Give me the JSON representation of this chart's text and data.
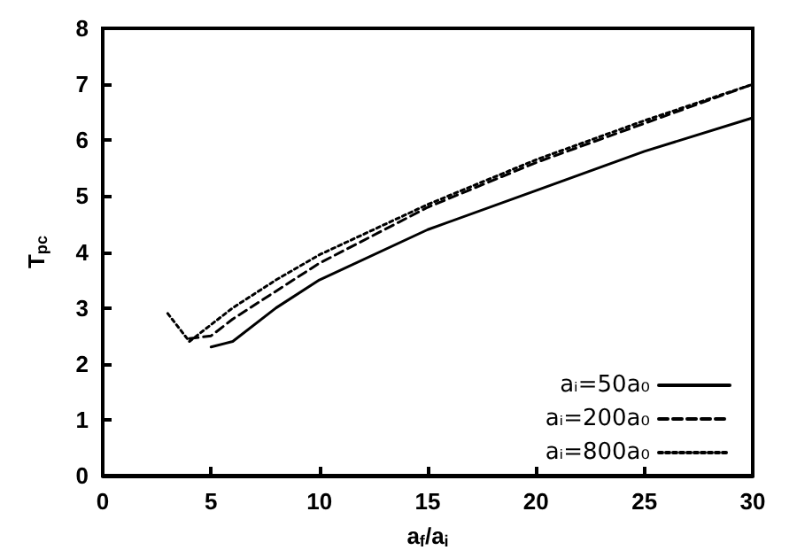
{
  "chart_data": {
    "type": "line",
    "xlabel": "a$_{f}$/a$_{i}$",
    "ylabel": "T$_{pc}$",
    "xlim": [
      0,
      30
    ],
    "xticks": [
      0,
      5,
      10,
      15,
      20,
      25,
      30
    ],
    "ylim": [
      0,
      8
    ],
    "yticks": [
      0,
      1,
      2,
      3,
      4,
      5,
      6,
      7,
      8
    ],
    "grid": false,
    "legend": "bottom right",
    "marker": "none",
    "series": [
      {
        "name": "aᵢ=50a₀",
        "color": "#000000",
        "line_style": "solid",
        "x": [
          5,
          6,
          8,
          10,
          15,
          20,
          25,
          30
        ],
        "values": [
          2.3,
          2.4,
          3.0,
          3.5,
          4.4,
          5.1,
          5.8,
          6.4
        ]
      },
      {
        "name": "aᵢ=200a₀",
        "color": "#000000",
        "line_style": "dashed",
        "x": [
          4,
          5,
          6,
          8,
          10,
          15,
          20,
          25,
          30
        ],
        "values": [
          2.45,
          2.5,
          2.8,
          3.3,
          3.8,
          4.8,
          5.6,
          6.3,
          7.0
        ]
      },
      {
        "name": "aᵢ=800a₀",
        "color": "#000000",
        "line_style": "dotted",
        "x": [
          3,
          4,
          5,
          6,
          8,
          10,
          15,
          20,
          25,
          30
        ],
        "values": [
          2.9,
          2.4,
          2.7,
          3.0,
          3.5,
          3.95,
          4.85,
          5.65,
          6.35,
          7.0
        ]
      }
    ]
  }
}
